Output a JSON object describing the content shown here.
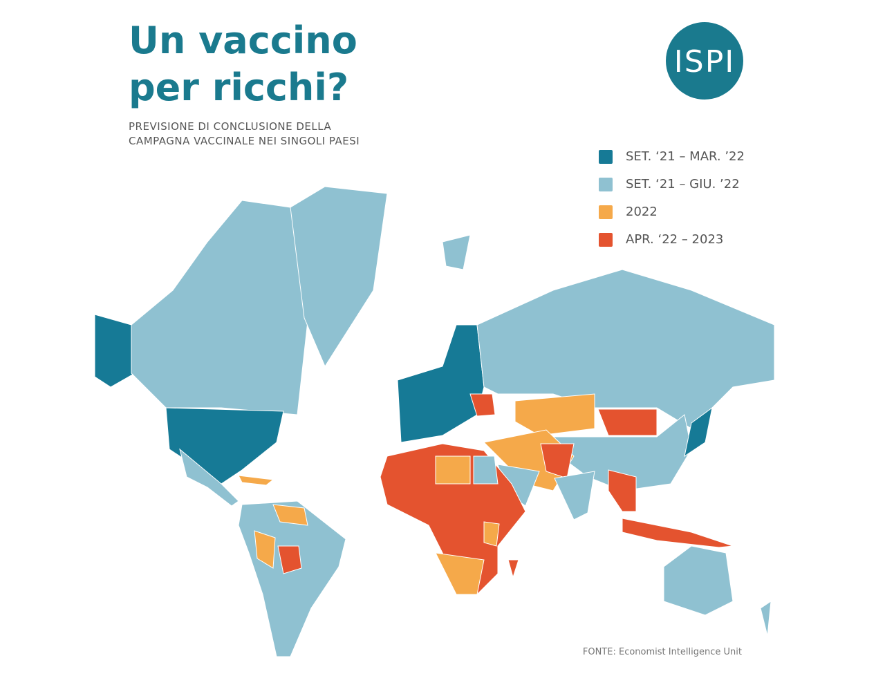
{
  "header": {
    "title": [
      "Un vaccino",
      "per ricchi?"
    ],
    "subtitle": [
      "PREVISIONE DI CONCLUSIONE DELLA",
      "CAMPAGNA VACCINALE NEI SINGOLI PAESI"
    ],
    "logo": "ISPI"
  },
  "legend": [
    {
      "label": "SET. ‘21 – MAR. ’22",
      "color": "#167a96"
    },
    {
      "label": "SET. ‘21 – GIU. ’22",
      "color": "#8fc1d1"
    },
    {
      "label": "2022",
      "color": "#f5a94a"
    },
    {
      "label": "APR. ‘22 – 2023",
      "color": "#e4532f"
    }
  ],
  "source": "FONTE: Economist Intelligence Unit"
}
